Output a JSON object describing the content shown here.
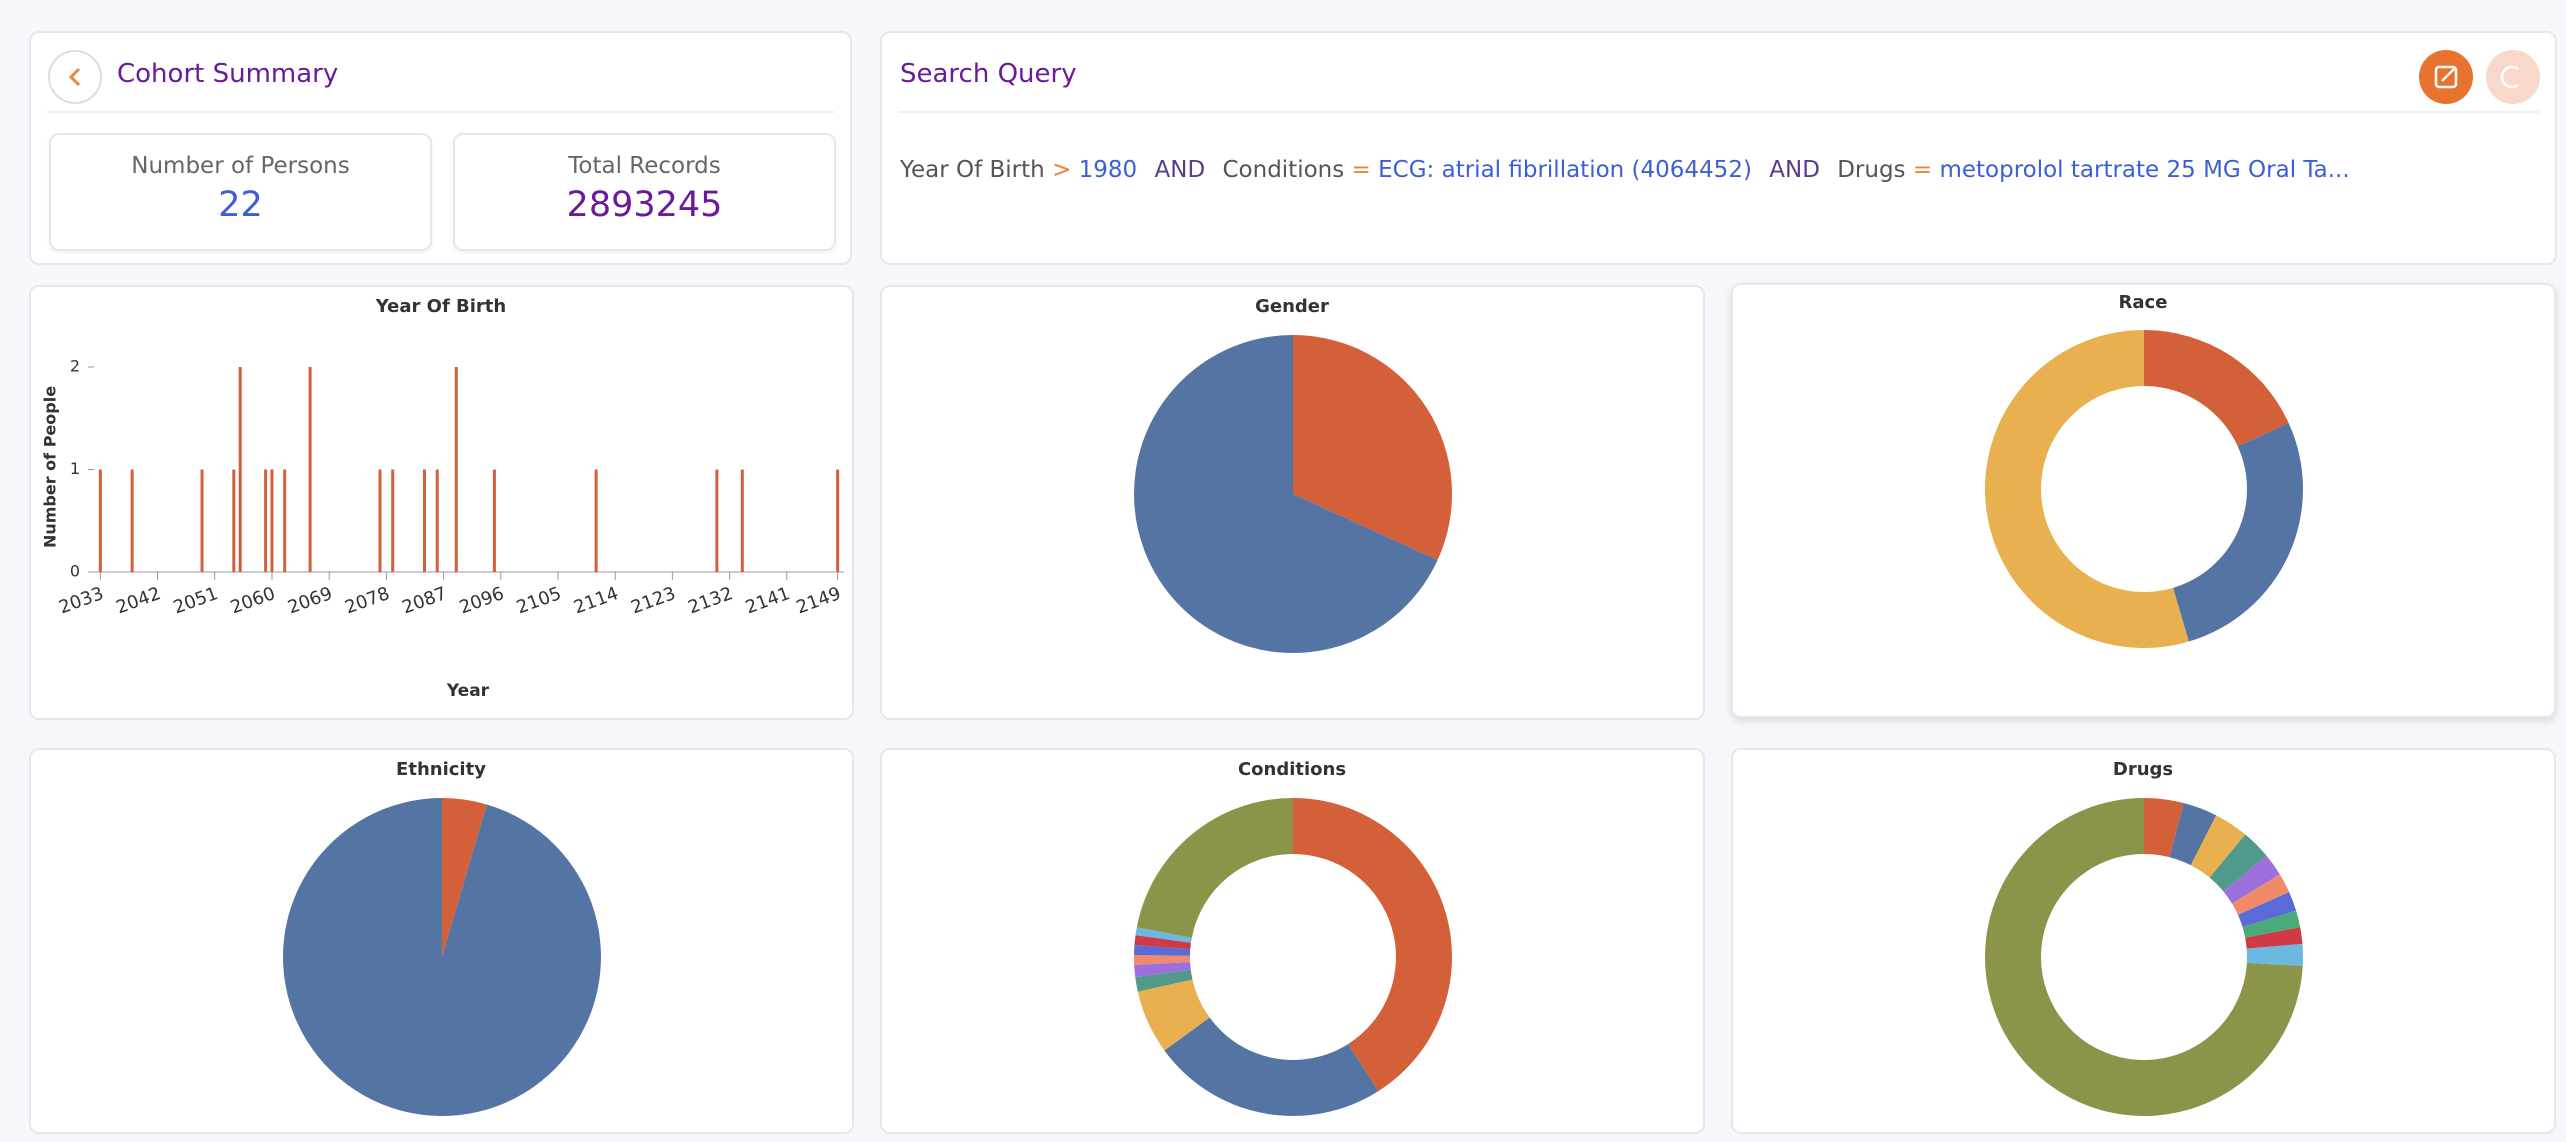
{
  "cohort_summary": {
    "title": "Cohort Summary",
    "stats": [
      {
        "label": "Number of Persons",
        "value": 22
      },
      {
        "label": "Total Records",
        "value": 2893245
      }
    ]
  },
  "search_query": {
    "title": "Search Query",
    "clauses": [
      {
        "field": "Year Of Birth",
        "operator": ">",
        "value": "1980"
      },
      {
        "field": "Conditions",
        "operator": "=",
        "value": "ECG: atrial fibrillation (4064452)"
      },
      {
        "field": "Drugs",
        "operator": "=",
        "value": "metoprolol tartrate 25 MG Oral Ta..."
      }
    ],
    "connectors": [
      "AND",
      "AND"
    ]
  },
  "chart_data": [
    {
      "type": "bar",
      "title": "Year Of Birth",
      "x_label": "Year",
      "y_label": "Number of People",
      "color": "#d4603a",
      "x": [
        2033,
        2038,
        2049,
        2054,
        2055,
        2059,
        2060,
        2062,
        2066,
        2077,
        2079,
        2084,
        2086,
        2089,
        2095,
        2111,
        2130,
        2134,
        2149
      ],
      "values": [
        1,
        1,
        1,
        1,
        2,
        1,
        1,
        1,
        2,
        1,
        1,
        1,
        1,
        2,
        1,
        1,
        1,
        1,
        1
      ],
      "xlim": [
        2032,
        2150
      ],
      "xticks": [
        2033,
        2042,
        2051,
        2060,
        2069,
        2078,
        2087,
        2096,
        2105,
        2114,
        2123,
        2132,
        2141,
        2149
      ],
      "ylim": [
        0,
        2
      ],
      "yticks": [
        0,
        1,
        2
      ]
    },
    {
      "type": "pie",
      "title": "Gender",
      "donut": false,
      "values": [
        7,
        15
      ],
      "colors": [
        "#d4603a",
        "#5475a3"
      ]
    },
    {
      "type": "pie",
      "title": "Race",
      "donut": true,
      "values": [
        4,
        6,
        12
      ],
      "colors": [
        "#d4603a",
        "#5475a3",
        "#e8b04f"
      ]
    },
    {
      "type": "pie",
      "title": "Ethnicity",
      "donut": false,
      "values": [
        1,
        21
      ],
      "colors": [
        "#d4603a",
        "#5475a3"
      ]
    },
    {
      "type": "pie",
      "title": "Conditions",
      "donut": true,
      "values": [
        41,
        24,
        6.5,
        1.5,
        1.2,
        1,
        1,
        1,
        0.8,
        22
      ],
      "colors": [
        "#d4603a",
        "#5475a3",
        "#e8b04f",
        "#4f9a8a",
        "#9b6fdc",
        "#f08a6a",
        "#5a6ad8",
        "#d03a45",
        "#6bb8e0",
        "#8c944a"
      ]
    },
    {
      "type": "pie",
      "title": "Drugs",
      "donut": true,
      "values": [
        4,
        3.5,
        3.5,
        3,
        2.3,
        2,
        2,
        1.7,
        1.7,
        2.2,
        74.1
      ],
      "colors": [
        "#d4603a",
        "#5475a3",
        "#e8b04f",
        "#4f9a8a",
        "#9b6fdc",
        "#f08a6a",
        "#5a6ad8",
        "#4aaa7a",
        "#d03a45",
        "#6bb8e0",
        "#8c944a"
      ]
    }
  ]
}
